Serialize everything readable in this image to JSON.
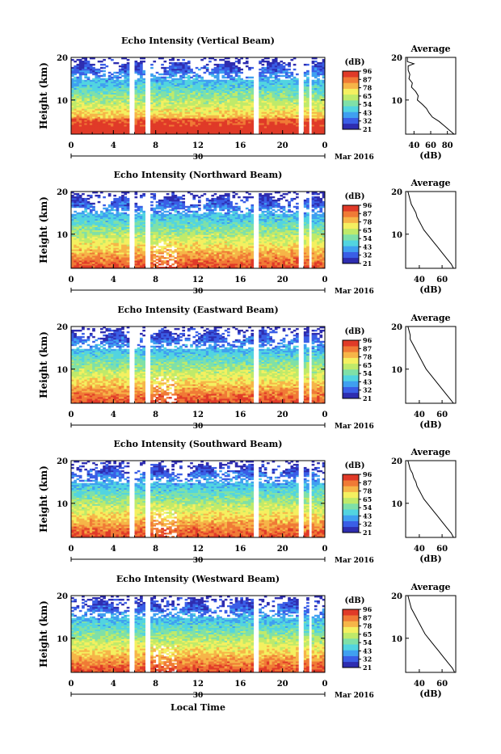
{
  "x_axis_label": "Local Time",
  "date_label": "Mar 2016",
  "day_label": "30",
  "colorbar": {
    "unit": "(dB)",
    "ticks": [
      "96",
      "87",
      "78",
      "65",
      "54",
      "43",
      "32",
      "21"
    ],
    "colors": [
      "#2e2db0",
      "#3a5ee6",
      "#3fa0f0",
      "#52d4e0",
      "#7fe0a8",
      "#bfea6a",
      "#f4f060",
      "#f6b548",
      "#f07a36",
      "#e03a28"
    ]
  },
  "chart_data": [
    {
      "type": "heatmap",
      "title": "Echo Intensity (Vertical Beam)",
      "ylabel": "Height (km)",
      "ylim": [
        2,
        20
      ],
      "yticks": [
        "20",
        "10"
      ],
      "xlim": [
        0,
        24
      ],
      "xticks": [
        "0",
        "4",
        "8",
        "12",
        "16",
        "20",
        "0"
      ],
      "data_gaps_hours": [
        [
          5.5,
          6.0
        ],
        [
          7.1,
          7.6
        ],
        [
          17.2,
          17.8
        ],
        [
          21.6,
          21.9
        ],
        [
          22.4,
          22.7
        ]
      ],
      "average_profile": {
        "title": "Average",
        "xlabel": "(dB)",
        "xticks": [
          "40",
          "60",
          "80"
        ],
        "xlim": [
          30,
          90
        ],
        "points": [
          [
            32,
            20
          ],
          [
            32,
            19
          ],
          [
            40,
            18.5
          ],
          [
            33,
            18
          ],
          [
            33,
            17
          ],
          [
            35,
            16
          ],
          [
            34,
            15
          ],
          [
            38,
            14
          ],
          [
            37,
            13
          ],
          [
            42,
            12
          ],
          [
            45,
            11
          ],
          [
            44,
            10
          ],
          [
            50,
            9
          ],
          [
            55,
            8
          ],
          [
            58,
            7
          ],
          [
            62,
            6
          ],
          [
            70,
            5
          ],
          [
            76,
            4
          ],
          [
            82,
            3
          ],
          [
            88,
            2
          ]
        ]
      }
    },
    {
      "type": "heatmap",
      "title": "Echo Intensity (Northward Beam)",
      "ylabel": "Height (km)",
      "ylim": [
        2,
        20
      ],
      "yticks": [
        "20",
        "10"
      ],
      "xlim": [
        0,
        24
      ],
      "xticks": [
        "0",
        "4",
        "8",
        "12",
        "16",
        "20",
        "0"
      ],
      "data_gaps_hours": [
        [
          5.5,
          6.0
        ],
        [
          7.1,
          7.6
        ],
        [
          17.2,
          17.8
        ],
        [
          21.6,
          21.9
        ],
        [
          22.4,
          22.7
        ]
      ],
      "average_profile": {
        "title": "Average",
        "xlabel": "(dB)",
        "xticks": [
          "40",
          "60"
        ],
        "xlim": [
          28,
          72
        ],
        "points": [
          [
            30,
            20
          ],
          [
            31,
            19
          ],
          [
            32,
            18
          ],
          [
            33,
            17
          ],
          [
            35,
            16
          ],
          [
            37,
            15
          ],
          [
            38,
            14
          ],
          [
            40,
            13
          ],
          [
            42,
            12
          ],
          [
            44,
            11
          ],
          [
            47,
            10
          ],
          [
            50,
            9
          ],
          [
            53,
            8
          ],
          [
            56,
            7
          ],
          [
            59,
            6
          ],
          [
            62,
            5
          ],
          [
            65,
            4
          ],
          [
            68,
            3
          ],
          [
            70,
            2
          ]
        ]
      }
    },
    {
      "type": "heatmap",
      "title": "Echo Intensity (Eastward Beam)",
      "ylabel": "Height (km)",
      "ylim": [
        2,
        20
      ],
      "yticks": [
        "20",
        "10"
      ],
      "xlim": [
        0,
        24
      ],
      "xticks": [
        "0",
        "4",
        "8",
        "12",
        "16",
        "20",
        "0"
      ],
      "data_gaps_hours": [
        [
          5.5,
          6.0
        ],
        [
          7.1,
          7.6
        ],
        [
          17.2,
          17.8
        ],
        [
          21.6,
          21.9
        ],
        [
          22.4,
          22.7
        ]
      ],
      "average_profile": {
        "title": "Average",
        "xlabel": "(dB)",
        "xticks": [
          "40",
          "60"
        ],
        "xlim": [
          28,
          72
        ],
        "points": [
          [
            30,
            20
          ],
          [
            31,
            19
          ],
          [
            32,
            18
          ],
          [
            32,
            17
          ],
          [
            34,
            16
          ],
          [
            36,
            15
          ],
          [
            38,
            14
          ],
          [
            40,
            13
          ],
          [
            42,
            12
          ],
          [
            44,
            11
          ],
          [
            46,
            10
          ],
          [
            49,
            9
          ],
          [
            52,
            8
          ],
          [
            55,
            7
          ],
          [
            58,
            6
          ],
          [
            61,
            5
          ],
          [
            64,
            4
          ],
          [
            67,
            3
          ],
          [
            70,
            2
          ]
        ]
      }
    },
    {
      "type": "heatmap",
      "title": "Echo Intensity (Southward Beam)",
      "ylabel": "Height (km)",
      "ylim": [
        2,
        20
      ],
      "yticks": [
        "20",
        "10"
      ],
      "xlim": [
        0,
        24
      ],
      "xticks": [
        "0",
        "4",
        "8",
        "12",
        "16",
        "20",
        "0"
      ],
      "data_gaps_hours": [
        [
          5.5,
          6.0
        ],
        [
          7.1,
          7.6
        ],
        [
          17.2,
          17.8
        ],
        [
          21.6,
          21.9
        ],
        [
          22.4,
          22.7
        ]
      ],
      "average_profile": {
        "title": "Average",
        "xlabel": "(dB)",
        "xticks": [
          "40",
          "60"
        ],
        "xlim": [
          28,
          72
        ],
        "points": [
          [
            30,
            20
          ],
          [
            31,
            19
          ],
          [
            32,
            18
          ],
          [
            34,
            17
          ],
          [
            35,
            16
          ],
          [
            37,
            15
          ],
          [
            38,
            14
          ],
          [
            40,
            13
          ],
          [
            42,
            12
          ],
          [
            44,
            11
          ],
          [
            47,
            10
          ],
          [
            50,
            9
          ],
          [
            53,
            8
          ],
          [
            56,
            7
          ],
          [
            59,
            6
          ],
          [
            62,
            5
          ],
          [
            65,
            4
          ],
          [
            68,
            3
          ],
          [
            70,
            2
          ]
        ]
      }
    },
    {
      "type": "heatmap",
      "title": "Echo Intensity (Westward Beam)",
      "ylabel": "Height (km)",
      "ylim": [
        2,
        20
      ],
      "yticks": [
        "20",
        "10"
      ],
      "xlim": [
        0,
        24
      ],
      "xticks": [
        "0",
        "4",
        "8",
        "12",
        "16",
        "20",
        "0"
      ],
      "data_gaps_hours": [
        [
          5.5,
          6.0
        ],
        [
          7.1,
          7.6
        ],
        [
          17.2,
          17.8
        ],
        [
          21.6,
          21.9
        ],
        [
          22.4,
          22.7
        ]
      ],
      "average_profile": {
        "title": "Average",
        "xlabel": "(dB)",
        "xticks": [
          "40",
          "60"
        ],
        "xlim": [
          28,
          72
        ],
        "points": [
          [
            30,
            20
          ],
          [
            31,
            19
          ],
          [
            32,
            18
          ],
          [
            33,
            17
          ],
          [
            35,
            16
          ],
          [
            37,
            15
          ],
          [
            39,
            14
          ],
          [
            41,
            13
          ],
          [
            43,
            12
          ],
          [
            45,
            11
          ],
          [
            48,
            10
          ],
          [
            51,
            9
          ],
          [
            54,
            8
          ],
          [
            57,
            7
          ],
          [
            60,
            6
          ],
          [
            63,
            5
          ],
          [
            66,
            4
          ],
          [
            69,
            3
          ],
          [
            71,
            2
          ]
        ]
      }
    }
  ]
}
